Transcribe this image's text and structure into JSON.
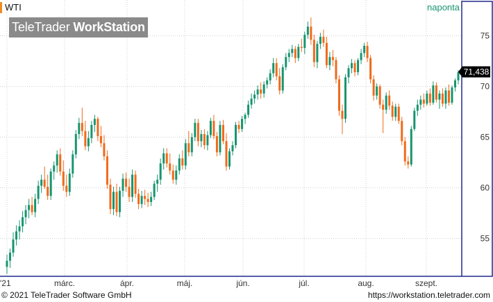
{
  "header": {
    "symbol": "WTI",
    "period": "naponta",
    "brand_regular": "TeleTrader ",
    "brand_bold": "WorkStation"
  },
  "footer": {
    "copyright": "© 2021  TeleTrader Software GmbH",
    "url": "https://workstation.teletrader.com"
  },
  "colors": {
    "up": "#17956f",
    "down": "#f06a1a",
    "axis_border": "#1e2a8c",
    "grid": "#cfcfcf",
    "last_price_bg": "#000000"
  },
  "chart_data": {
    "type": "candlestick",
    "last_price": "71,438",
    "y_ticks": [
      55,
      60,
      65,
      70,
      75
    ],
    "ylim": [
      52,
      77.5
    ],
    "x_labels": [
      "'21",
      "márc.",
      "ápr.",
      "máj.",
      "jún.",
      "júl.",
      "aug.",
      "szept."
    ],
    "candles": [
      {
        "o": 52.2,
        "h": 53.4,
        "l": 51.5,
        "c": 52.8
      },
      {
        "o": 52.8,
        "h": 54.0,
        "l": 52.1,
        "c": 53.6
      },
      {
        "o": 53.6,
        "h": 55.6,
        "l": 53.2,
        "c": 54.9
      },
      {
        "o": 54.9,
        "h": 56.3,
        "l": 54.3,
        "c": 55.7
      },
      {
        "o": 55.7,
        "h": 56.8,
        "l": 54.9,
        "c": 56.2
      },
      {
        "o": 56.2,
        "h": 57.7,
        "l": 55.6,
        "c": 57.1
      },
      {
        "o": 57.1,
        "h": 58.3,
        "l": 56.4,
        "c": 57.8
      },
      {
        "o": 57.8,
        "h": 58.9,
        "l": 57.0,
        "c": 58.3
      },
      {
        "o": 58.3,
        "h": 59.1,
        "l": 57.3,
        "c": 57.6
      },
      {
        "o": 57.6,
        "h": 59.4,
        "l": 57.1,
        "c": 58.9
      },
      {
        "o": 58.9,
        "h": 60.7,
        "l": 58.4,
        "c": 60.2
      },
      {
        "o": 60.2,
        "h": 61.3,
        "l": 59.5,
        "c": 60.8
      },
      {
        "o": 60.8,
        "h": 62.1,
        "l": 59.9,
        "c": 60.1
      },
      {
        "o": 60.1,
        "h": 61.3,
        "l": 58.8,
        "c": 59.2
      },
      {
        "o": 59.2,
        "h": 61.9,
        "l": 58.8,
        "c": 61.6
      },
      {
        "o": 61.6,
        "h": 62.6,
        "l": 60.8,
        "c": 62.2
      },
      {
        "o": 62.2,
        "h": 63.7,
        "l": 61.5,
        "c": 63.3
      },
      {
        "o": 63.3,
        "h": 63.9,
        "l": 61.2,
        "c": 61.6
      },
      {
        "o": 61.6,
        "h": 62.7,
        "l": 59.7,
        "c": 60.2
      },
      {
        "o": 60.2,
        "h": 61.3,
        "l": 59.1,
        "c": 59.6
      },
      {
        "o": 59.6,
        "h": 61.9,
        "l": 59.2,
        "c": 61.4
      },
      {
        "o": 61.4,
        "h": 63.7,
        "l": 61.0,
        "c": 63.3
      },
      {
        "o": 63.3,
        "h": 65.7,
        "l": 62.9,
        "c": 65.3
      },
      {
        "o": 65.3,
        "h": 66.9,
        "l": 64.8,
        "c": 66.4
      },
      {
        "o": 66.4,
        "h": 67.9,
        "l": 65.1,
        "c": 65.6
      },
      {
        "o": 65.6,
        "h": 66.6,
        "l": 63.7,
        "c": 64.1
      },
      {
        "o": 64.1,
        "h": 65.6,
        "l": 63.6,
        "c": 64.9
      },
      {
        "o": 64.9,
        "h": 66.6,
        "l": 64.4,
        "c": 66.2
      },
      {
        "o": 66.2,
        "h": 67.2,
        "l": 65.5,
        "c": 66.8
      },
      {
        "o": 66.8,
        "h": 67.0,
        "l": 64.6,
        "c": 65.1
      },
      {
        "o": 65.1,
        "h": 66.1,
        "l": 64.0,
        "c": 64.4
      },
      {
        "o": 64.4,
        "h": 65.2,
        "l": 62.7,
        "c": 63.1
      },
      {
        "o": 63.1,
        "h": 63.7,
        "l": 59.9,
        "c": 60.3
      },
      {
        "o": 60.3,
        "h": 60.9,
        "l": 57.4,
        "c": 57.9
      },
      {
        "o": 57.9,
        "h": 60.1,
        "l": 57.3,
        "c": 59.6
      },
      {
        "o": 59.6,
        "h": 60.4,
        "l": 57.2,
        "c": 57.6
      },
      {
        "o": 57.6,
        "h": 60.1,
        "l": 57.1,
        "c": 59.7
      },
      {
        "o": 59.7,
        "h": 61.4,
        "l": 59.1,
        "c": 60.9
      },
      {
        "o": 60.9,
        "h": 61.5,
        "l": 59.6,
        "c": 60.1
      },
      {
        "o": 60.1,
        "h": 60.9,
        "l": 58.6,
        "c": 59.1
      },
      {
        "o": 59.1,
        "h": 61.8,
        "l": 58.6,
        "c": 61.3
      },
      {
        "o": 61.3,
        "h": 61.7,
        "l": 59.0,
        "c": 59.4
      },
      {
        "o": 59.4,
        "h": 59.9,
        "l": 57.9,
        "c": 58.4
      },
      {
        "o": 58.4,
        "h": 59.7,
        "l": 58.0,
        "c": 59.2
      },
      {
        "o": 59.2,
        "h": 59.8,
        "l": 58.3,
        "c": 58.9
      },
      {
        "o": 58.9,
        "h": 59.5,
        "l": 58.1,
        "c": 58.6
      },
      {
        "o": 58.6,
        "h": 59.6,
        "l": 58.2,
        "c": 59.1
      },
      {
        "o": 59.1,
        "h": 60.7,
        "l": 58.8,
        "c": 60.4
      },
      {
        "o": 60.4,
        "h": 61.3,
        "l": 59.6,
        "c": 60.8
      },
      {
        "o": 60.8,
        "h": 62.9,
        "l": 60.3,
        "c": 62.4
      },
      {
        "o": 62.4,
        "h": 63.9,
        "l": 61.8,
        "c": 63.4
      },
      {
        "o": 63.4,
        "h": 63.9,
        "l": 62.0,
        "c": 62.4
      },
      {
        "o": 62.4,
        "h": 63.4,
        "l": 61.3,
        "c": 61.7
      },
      {
        "o": 61.7,
        "h": 62.3,
        "l": 60.4,
        "c": 60.8
      },
      {
        "o": 60.8,
        "h": 62.2,
        "l": 60.3,
        "c": 61.7
      },
      {
        "o": 61.7,
        "h": 63.3,
        "l": 61.3,
        "c": 62.9
      },
      {
        "o": 62.9,
        "h": 63.7,
        "l": 61.8,
        "c": 62.2
      },
      {
        "o": 62.2,
        "h": 64.8,
        "l": 61.8,
        "c": 64.4
      },
      {
        "o": 64.4,
        "h": 65.6,
        "l": 63.1,
        "c": 63.5
      },
      {
        "o": 63.5,
        "h": 65.4,
        "l": 63.1,
        "c": 65.0
      },
      {
        "o": 65.0,
        "h": 66.8,
        "l": 64.6,
        "c": 66.4
      },
      {
        "o": 66.4,
        "h": 66.8,
        "l": 64.1,
        "c": 64.6
      },
      {
        "o": 64.6,
        "h": 65.7,
        "l": 64.0,
        "c": 65.3
      },
      {
        "o": 65.3,
        "h": 65.8,
        "l": 63.8,
        "c": 64.2
      },
      {
        "o": 64.2,
        "h": 65.6,
        "l": 63.7,
        "c": 65.2
      },
      {
        "o": 65.2,
        "h": 66.9,
        "l": 64.9,
        "c": 66.6
      },
      {
        "o": 66.6,
        "h": 67.2,
        "l": 64.8,
        "c": 65.1
      },
      {
        "o": 65.1,
        "h": 65.5,
        "l": 63.1,
        "c": 63.5
      },
      {
        "o": 63.5,
        "h": 66.6,
        "l": 63.2,
        "c": 66.2
      },
      {
        "o": 66.2,
        "h": 66.7,
        "l": 64.3,
        "c": 64.6
      },
      {
        "o": 64.6,
        "h": 65.4,
        "l": 61.7,
        "c": 62.1
      },
      {
        "o": 62.1,
        "h": 63.9,
        "l": 61.8,
        "c": 63.6
      },
      {
        "o": 63.6,
        "h": 64.6,
        "l": 63.2,
        "c": 64.2
      },
      {
        "o": 64.2,
        "h": 66.5,
        "l": 63.9,
        "c": 66.2
      },
      {
        "o": 66.2,
        "h": 66.6,
        "l": 65.4,
        "c": 65.8
      },
      {
        "o": 65.8,
        "h": 67.1,
        "l": 65.5,
        "c": 66.8
      },
      {
        "o": 66.8,
        "h": 67.4,
        "l": 66.3,
        "c": 67.2
      },
      {
        "o": 67.2,
        "h": 68.6,
        "l": 66.9,
        "c": 68.2
      },
      {
        "o": 68.2,
        "h": 69.3,
        "l": 67.8,
        "c": 68.8
      },
      {
        "o": 68.8,
        "h": 69.6,
        "l": 68.3,
        "c": 69.2
      },
      {
        "o": 69.2,
        "h": 70.1,
        "l": 68.7,
        "c": 69.7
      },
      {
        "o": 69.7,
        "h": 70.4,
        "l": 68.8,
        "c": 69.3
      },
      {
        "o": 69.3,
        "h": 70.5,
        "l": 68.9,
        "c": 70.2
      },
      {
        "o": 70.2,
        "h": 70.9,
        "l": 69.8,
        "c": 70.6
      },
      {
        "o": 70.6,
        "h": 71.7,
        "l": 70.2,
        "c": 71.3
      },
      {
        "o": 71.3,
        "h": 72.8,
        "l": 70.9,
        "c": 72.3
      },
      {
        "o": 72.3,
        "h": 72.8,
        "l": 70.6,
        "c": 71.0
      },
      {
        "o": 71.0,
        "h": 71.8,
        "l": 69.2,
        "c": 69.6
      },
      {
        "o": 69.6,
        "h": 72.2,
        "l": 69.3,
        "c": 71.9
      },
      {
        "o": 71.9,
        "h": 73.3,
        "l": 71.6,
        "c": 72.9
      },
      {
        "o": 72.9,
        "h": 73.7,
        "l": 72.4,
        "c": 73.3
      },
      {
        "o": 73.3,
        "h": 74.1,
        "l": 72.9,
        "c": 73.7
      },
      {
        "o": 73.7,
        "h": 74.0,
        "l": 72.3,
        "c": 72.8
      },
      {
        "o": 72.8,
        "h": 74.2,
        "l": 72.5,
        "c": 73.9
      },
      {
        "o": 73.9,
        "h": 74.7,
        "l": 73.4,
        "c": 73.8
      },
      {
        "o": 73.8,
        "h": 75.4,
        "l": 73.2,
        "c": 75.1
      },
      {
        "o": 75.1,
        "h": 76.4,
        "l": 74.7,
        "c": 75.9
      },
      {
        "o": 75.9,
        "h": 76.8,
        "l": 74.1,
        "c": 74.6
      },
      {
        "o": 74.6,
        "h": 75.1,
        "l": 71.9,
        "c": 72.4
      },
      {
        "o": 72.4,
        "h": 74.5,
        "l": 71.8,
        "c": 74.2
      },
      {
        "o": 74.2,
        "h": 75.3,
        "l": 73.7,
        "c": 74.9
      },
      {
        "o": 74.9,
        "h": 75.6,
        "l": 73.9,
        "c": 74.3
      },
      {
        "o": 74.3,
        "h": 74.9,
        "l": 71.8,
        "c": 72.1
      },
      {
        "o": 72.1,
        "h": 73.4,
        "l": 71.6,
        "c": 72.9
      },
      {
        "o": 72.9,
        "h": 73.6,
        "l": 72.0,
        "c": 72.6
      },
      {
        "o": 72.6,
        "h": 72.9,
        "l": 70.3,
        "c": 70.7
      },
      {
        "o": 70.7,
        "h": 71.1,
        "l": 67.1,
        "c": 67.6
      },
      {
        "o": 67.6,
        "h": 68.2,
        "l": 65.3,
        "c": 66.8
      },
      {
        "o": 66.8,
        "h": 71.2,
        "l": 66.4,
        "c": 70.9
      },
      {
        "o": 70.9,
        "h": 72.1,
        "l": 70.3,
        "c": 71.8
      },
      {
        "o": 71.8,
        "h": 72.7,
        "l": 71.3,
        "c": 72.3
      },
      {
        "o": 72.3,
        "h": 72.6,
        "l": 71.0,
        "c": 71.4
      },
      {
        "o": 71.4,
        "h": 72.8,
        "l": 71.1,
        "c": 72.6
      },
      {
        "o": 72.6,
        "h": 73.7,
        "l": 72.2,
        "c": 73.3
      },
      {
        "o": 73.3,
        "h": 74.3,
        "l": 72.9,
        "c": 74.0
      },
      {
        "o": 74.0,
        "h": 74.4,
        "l": 72.4,
        "c": 72.8
      },
      {
        "o": 72.8,
        "h": 73.1,
        "l": 70.3,
        "c": 70.7
      },
      {
        "o": 70.7,
        "h": 71.1,
        "l": 68.6,
        "c": 69.1
      },
      {
        "o": 69.1,
        "h": 70.3,
        "l": 68.7,
        "c": 70.0
      },
      {
        "o": 70.0,
        "h": 70.2,
        "l": 67.8,
        "c": 68.2
      },
      {
        "o": 68.2,
        "h": 68.7,
        "l": 65.4,
        "c": 67.7
      },
      {
        "o": 67.7,
        "h": 69.4,
        "l": 67.3,
        "c": 69.1
      },
      {
        "o": 69.1,
        "h": 69.6,
        "l": 67.7,
        "c": 68.1
      },
      {
        "o": 68.1,
        "h": 68.5,
        "l": 66.6,
        "c": 67.0
      },
      {
        "o": 67.0,
        "h": 68.3,
        "l": 66.6,
        "c": 68.0
      },
      {
        "o": 68.0,
        "h": 68.3,
        "l": 66.3,
        "c": 66.6
      },
      {
        "o": 66.6,
        "h": 67.0,
        "l": 64.2,
        "c": 64.6
      },
      {
        "o": 64.6,
        "h": 65.0,
        "l": 62.2,
        "c": 62.6
      },
      {
        "o": 62.6,
        "h": 63.1,
        "l": 61.9,
        "c": 62.3
      },
      {
        "o": 62.3,
        "h": 66.1,
        "l": 62.1,
        "c": 65.8
      },
      {
        "o": 65.8,
        "h": 67.9,
        "l": 65.6,
        "c": 67.6
      },
      {
        "o": 67.6,
        "h": 68.7,
        "l": 67.1,
        "c": 68.2
      },
      {
        "o": 68.2,
        "h": 69.1,
        "l": 67.7,
        "c": 68.7
      },
      {
        "o": 68.7,
        "h": 69.3,
        "l": 67.9,
        "c": 68.3
      },
      {
        "o": 68.3,
        "h": 69.6,
        "l": 68.1,
        "c": 69.3
      },
      {
        "o": 69.3,
        "h": 69.8,
        "l": 68.1,
        "c": 68.4
      },
      {
        "o": 68.4,
        "h": 70.5,
        "l": 68.2,
        "c": 70.1
      },
      {
        "o": 70.1,
        "h": 70.4,
        "l": 68.4,
        "c": 68.7
      },
      {
        "o": 68.7,
        "h": 69.6,
        "l": 67.8,
        "c": 69.3
      },
      {
        "o": 69.3,
        "h": 69.8,
        "l": 68.0,
        "c": 68.3
      },
      {
        "o": 68.3,
        "h": 69.9,
        "l": 67.8,
        "c": 69.6
      },
      {
        "o": 69.6,
        "h": 70.2,
        "l": 68.1,
        "c": 68.4
      },
      {
        "o": 68.4,
        "h": 70.1,
        "l": 68.2,
        "c": 69.9
      },
      {
        "o": 69.9,
        "h": 70.8,
        "l": 69.5,
        "c": 70.6
      },
      {
        "o": 70.6,
        "h": 71.6,
        "l": 70.2,
        "c": 71.4
      }
    ]
  }
}
